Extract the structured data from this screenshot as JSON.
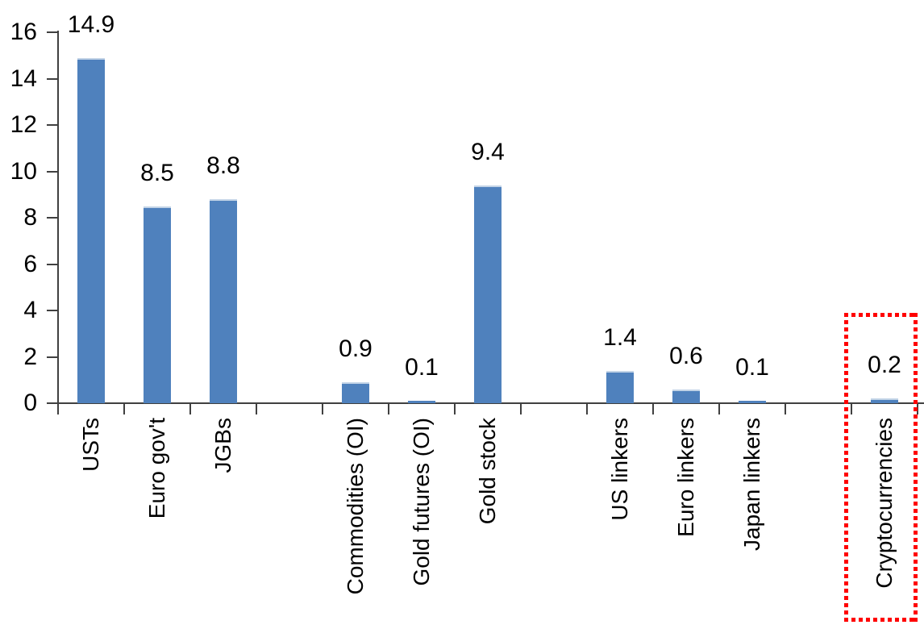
{
  "chart_data": {
    "type": "bar",
    "title": "",
    "categories": [
      "USTs",
      "Euro gov't",
      "JGBs",
      "Commodities (OI)",
      "Gold futures (OI)",
      "Gold stock",
      "US linkers",
      "Euro linkers",
      "Japan linkers",
      "Cryptocurrencies"
    ],
    "values": [
      14.9,
      8.5,
      8.8,
      0.9,
      0.1,
      9.4,
      1.4,
      0.6,
      0.1,
      0.2
    ],
    "value_labels": [
      "14.9",
      "8.5",
      "8.8",
      "0.9",
      "0.1",
      "9.4",
      "1.4",
      "0.6",
      "0.1",
      "0.2"
    ],
    "group_sizes": [
      3,
      3,
      3,
      1
    ],
    "xlabel": "",
    "ylabel": "",
    "ylim": [
      0,
      16
    ],
    "y_ticks": [
      "0",
      "2",
      "4",
      "6",
      "8",
      "10",
      "12",
      "14",
      "16"
    ],
    "grid": false,
    "legend": false,
    "x_label_rotation_degrees": -90,
    "colors": {
      "bar": "#4F81BD",
      "bar_top_edge": "#C3D4E7",
      "axis": "#404040",
      "text": "#000000",
      "highlight": "#FF0000"
    },
    "highlight": {
      "category": "Cryptocurrencies",
      "style": "red dotted rectangle around bar, value label and category label"
    }
  }
}
